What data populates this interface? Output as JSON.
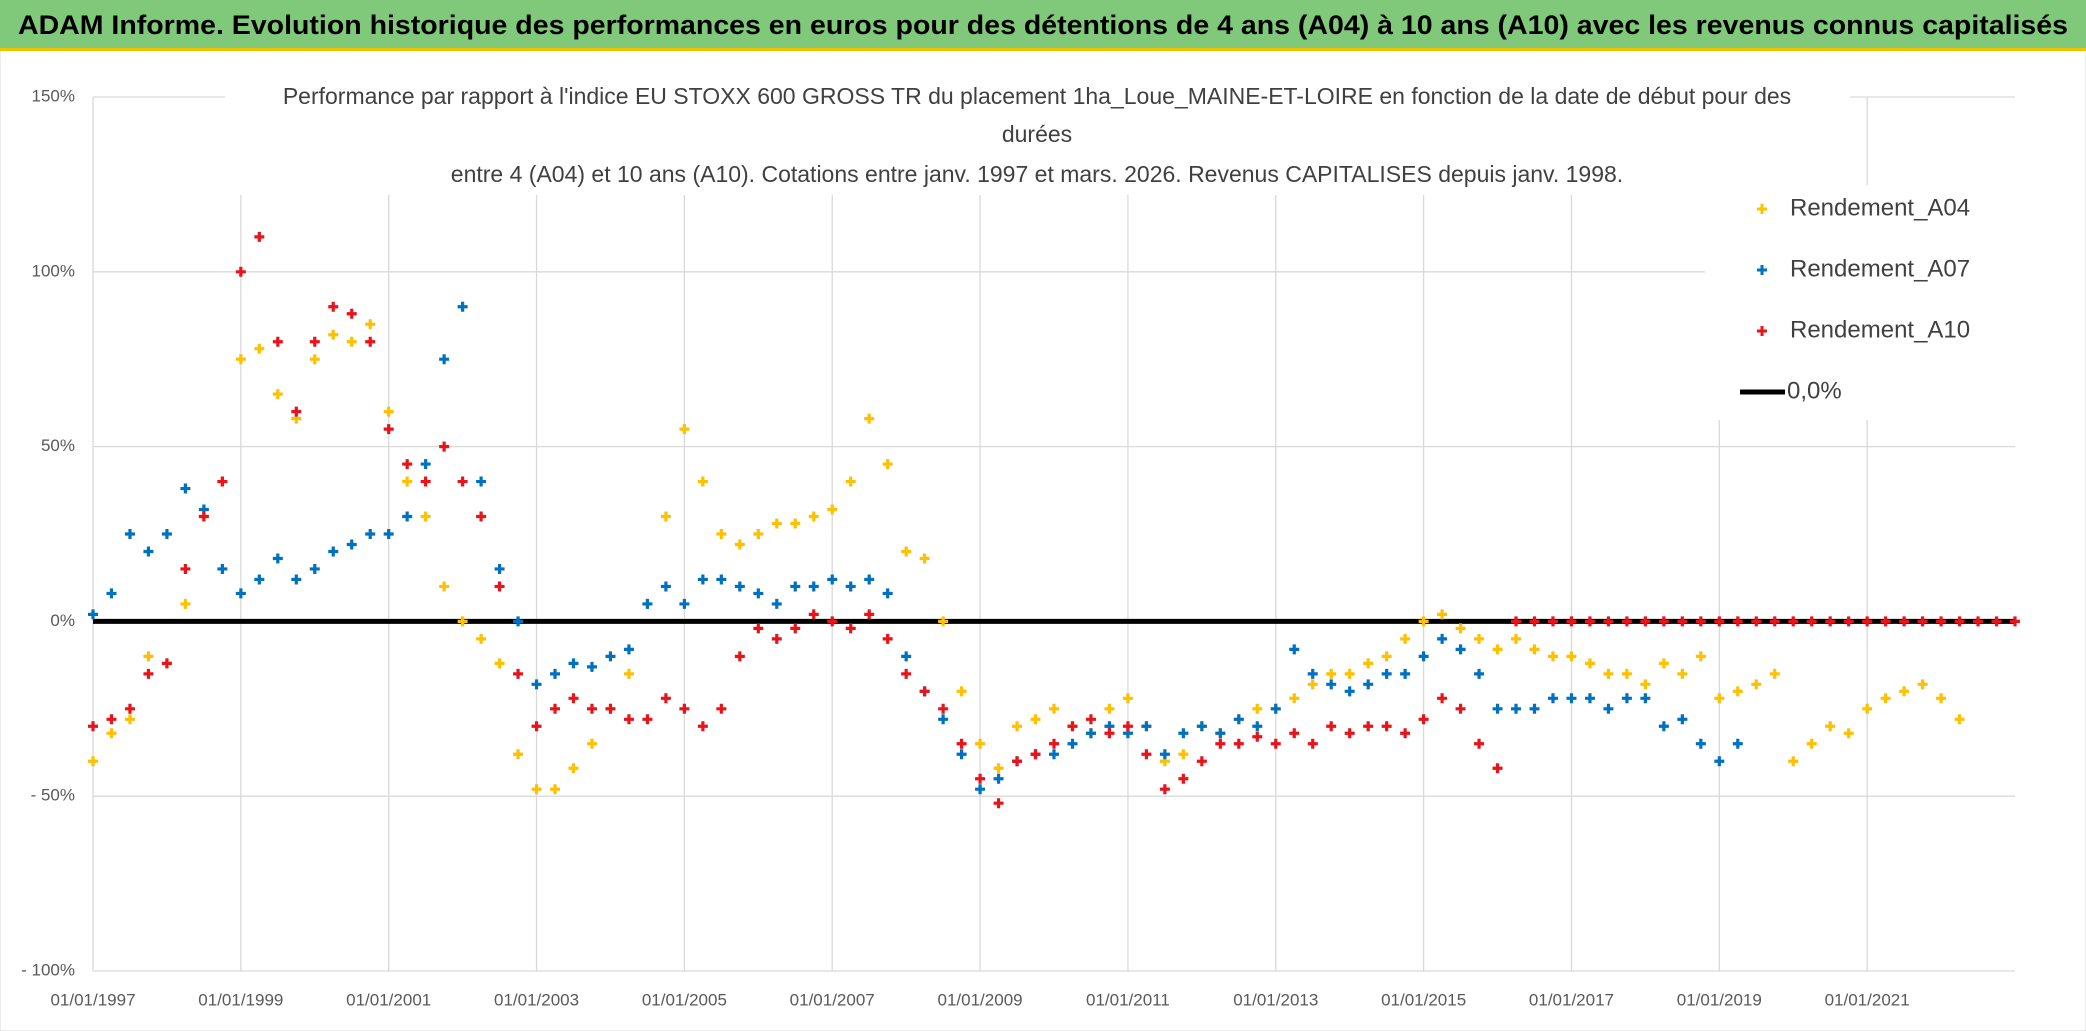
{
  "chart_data": {
    "type": "scatter",
    "title": "ADAM Informe. Evolution historique des performances en euros pour des détentions de 4 ans (A04) à 10 ans (A10) avec les revenus connus capitalisés",
    "subtitle": [
      "Performance par rapport à l'indice EU STOXX 600 GROSS TR  du placement 1ha_Loue_MAINE-ET-LOIRE en fonction de la date de début pour des",
      "durées",
      "entre 4 (A04) et 10 ans (A10). Cotations entre janv. 1997 et mars. 2026. Revenus CAPITALISES depuis janv. 1998."
    ],
    "xlim": [
      1997,
      2023
    ],
    "xticks": [
      {
        "value": 1997,
        "label": "01/01/1997"
      },
      {
        "value": 1999,
        "label": "01/01/1999"
      },
      {
        "value": 2001,
        "label": "01/01/2001"
      },
      {
        "value": 2003,
        "label": "01/01/2003"
      },
      {
        "value": 2005,
        "label": "01/01/2005"
      },
      {
        "value": 2007,
        "label": "01/01/2007"
      },
      {
        "value": 2009,
        "label": "01/01/2009"
      },
      {
        "value": 2011,
        "label": "01/01/2011"
      },
      {
        "value": 2013,
        "label": "01/01/2013"
      },
      {
        "value": 2015,
        "label": "01/01/2015"
      },
      {
        "value": 2017,
        "label": "01/01/2017"
      },
      {
        "value": 2019,
        "label": "01/01/2019"
      },
      {
        "value": 2021,
        "label": "01/01/2021"
      }
    ],
    "ylim": [
      -100,
      150
    ],
    "yticks": [
      {
        "value": 150,
        "label": "150%"
      },
      {
        "value": 100,
        "label": "100%"
      },
      {
        "value": 50,
        "label": "50%"
      },
      {
        "value": 0,
        "label": "0%"
      },
      {
        "value": -50,
        "label": "- 50%"
      },
      {
        "value": -100,
        "label": "- 100%"
      }
    ],
    "grid": true,
    "series": [
      {
        "name": "Rendement_A04",
        "color": "#ffc000",
        "style": "marker",
        "x": [
          1997,
          1997.25,
          1997.5,
          1997.75,
          1998,
          1998.25,
          1998.5,
          1998.75,
          1999,
          1999.25,
          1999.5,
          1999.75,
          2000,
          2000.25,
          2000.5,
          2000.75,
          2001,
          2001.25,
          2001.5,
          2001.75,
          2002,
          2002.25,
          2002.5,
          2002.75,
          2003,
          2003.25,
          2003.5,
          2003.75,
          2004,
          2004.25,
          2004.5,
          2004.75,
          2005,
          2005.25,
          2005.5,
          2005.75,
          2006,
          2006.25,
          2006.5,
          2006.75,
          2007,
          2007.25,
          2007.5,
          2007.75,
          2008,
          2008.25,
          2008.5,
          2008.75,
          2009,
          2009.25,
          2009.5,
          2009.75,
          2010,
          2010.25,
          2010.5,
          2010.75,
          2011,
          2011.25,
          2011.5,
          2011.75,
          2012,
          2012.25,
          2012.5,
          2012.75,
          2013,
          2013.25,
          2013.5,
          2013.75,
          2014,
          2014.25,
          2014.5,
          2014.75,
          2015,
          2015.25,
          2015.5,
          2015.75,
          2016,
          2016.25,
          2016.5,
          2016.75,
          2017,
          2017.25,
          2017.5,
          2017.75,
          2018,
          2018.25,
          2018.5,
          2018.75,
          2019,
          2019.25,
          2019.5,
          2019.75,
          2020,
          2020.25,
          2020.5,
          2020.75,
          2021,
          2021.25,
          2021.5,
          2021.75,
          2022,
          2022.25
        ],
        "values": [
          -40,
          -32,
          -28,
          -10,
          -12,
          5,
          30,
          40,
          75,
          78,
          65,
          58,
          75,
          82,
          80,
          85,
          60,
          40,
          30,
          10,
          0,
          -5,
          -12,
          -38,
          -48,
          -48,
          -42,
          -35,
          -25,
          -15,
          5,
          30,
          55,
          40,
          25,
          22,
          25,
          28,
          28,
          30,
          32,
          40,
          58,
          45,
          20,
          18,
          0,
          -20,
          -35,
          -42,
          -30,
          -28,
          -25,
          -30,
          -32,
          -25,
          -22,
          -30,
          -40,
          -38,
          -30,
          -32,
          -28,
          -25,
          -25,
          -22,
          -18,
          -15,
          -15,
          -12,
          -10,
          -5,
          0,
          2,
          -2,
          -5,
          -8,
          -5,
          -8,
          -10,
          -10,
          -12,
          -15,
          -15,
          -18,
          -12,
          -15,
          -10,
          -22,
          -20,
          -18,
          -15,
          -40,
          -35,
          -30,
          -32,
          -25,
          -22,
          -20,
          -18,
          -22,
          -28
        ]
      },
      {
        "name": "Rendement_A07",
        "color": "#0070c0",
        "style": "marker",
        "x": [
          1997,
          1997.25,
          1997.5,
          1997.75,
          1998,
          1998.25,
          1998.5,
          1998.75,
          1999,
          1999.25,
          1999.5,
          1999.75,
          2000,
          2000.25,
          2000.5,
          2000.75,
          2001,
          2001.25,
          2001.5,
          2001.75,
          2002,
          2002.25,
          2002.5,
          2002.75,
          2003,
          2003.25,
          2003.5,
          2003.75,
          2004,
          2004.25,
          2004.5,
          2004.75,
          2005,
          2005.25,
          2005.5,
          2005.75,
          2006,
          2006.25,
          2006.5,
          2006.75,
          2007,
          2007.25,
          2007.5,
          2007.75,
          2008,
          2008.25,
          2008.5,
          2008.75,
          2009,
          2009.25,
          2009.5,
          2009.75,
          2010,
          2010.25,
          2010.5,
          2010.75,
          2011,
          2011.25,
          2011.5,
          2011.75,
          2012,
          2012.25,
          2012.5,
          2012.75,
          2013,
          2013.25,
          2013.5,
          2013.75,
          2014,
          2014.25,
          2014.5,
          2014.75,
          2015,
          2015.25,
          2015.5,
          2015.75,
          2016,
          2016.25,
          2016.5,
          2016.75,
          2017,
          2017.25,
          2017.5,
          2017.75,
          2018,
          2018.25,
          2018.5,
          2018.75,
          2019,
          2019.25
        ],
        "values": [
          2,
          8,
          25,
          20,
          25,
          38,
          32,
          15,
          8,
          12,
          18,
          12,
          15,
          20,
          22,
          25,
          25,
          30,
          45,
          75,
          90,
          40,
          15,
          0,
          -18,
          -15,
          -12,
          -13,
          -10,
          -8,
          5,
          10,
          5,
          12,
          12,
          10,
          8,
          5,
          10,
          10,
          12,
          10,
          12,
          8,
          -10,
          -20,
          -28,
          -38,
          -48,
          -45,
          -40,
          -38,
          -38,
          -35,
          -32,
          -30,
          -32,
          -30,
          -38,
          -32,
          -30,
          -32,
          -28,
          -30,
          -25,
          -8,
          -15,
          -18,
          -20,
          -18,
          -15,
          -15,
          -10,
          -5,
          -8,
          -15,
          -25,
          -25,
          -25,
          -22,
          -22,
          -22,
          -25,
          -22,
          -22,
          -30,
          -28,
          -35,
          -40,
          -35
        ]
      },
      {
        "name": "Rendement_A10",
        "color": "#e8141c",
        "style": "marker",
        "x": [
          1997,
          1997.25,
          1997.5,
          1997.75,
          1998,
          1998.25,
          1998.5,
          1998.75,
          1999,
          1999.25,
          1999.5,
          1999.75,
          2000,
          2000.25,
          2000.5,
          2000.75,
          2001,
          2001.25,
          2001.5,
          2001.75,
          2002,
          2002.25,
          2002.5,
          2002.75,
          2003,
          2003.25,
          2003.5,
          2003.75,
          2004,
          2004.25,
          2004.5,
          2004.75,
          2005,
          2005.25,
          2005.5,
          2005.75,
          2006,
          2006.25,
          2006.5,
          2006.75,
          2007,
          2007.25,
          2007.5,
          2007.75,
          2008,
          2008.25,
          2008.5,
          2008.75,
          2009,
          2009.25,
          2009.5,
          2009.75,
          2010,
          2010.25,
          2010.5,
          2010.75,
          2011,
          2011.25,
          2011.5,
          2011.75,
          2012,
          2012.25,
          2012.5,
          2012.75,
          2013,
          2013.25,
          2013.5,
          2013.75,
          2014,
          2014.25,
          2014.5,
          2014.75,
          2015,
          2015.25,
          2015.5,
          2015.75,
          2016,
          2016.25,
          2016.5,
          2016.75,
          2017,
          2017.25,
          2017.5,
          2017.75,
          2018,
          2018.25,
          2018.5,
          2018.75,
          2019,
          2019.25,
          2019.5,
          2019.75,
          2020,
          2020.25,
          2020.5,
          2020.75,
          2021,
          2021.25,
          2021.5,
          2021.75,
          2022,
          2022.25,
          2022.5,
          2022.75,
          2023
        ],
        "values": [
          -30,
          -28,
          -25,
          -15,
          -12,
          15,
          30,
          40,
          100,
          110,
          80,
          60,
          80,
          90,
          88,
          80,
          55,
          45,
          40,
          50,
          40,
          30,
          10,
          -15,
          -30,
          -25,
          -22,
          -25,
          -25,
          -28,
          -28,
          -22,
          -25,
          -30,
          -25,
          -10,
          -2,
          -5,
          -2,
          2,
          0,
          -2,
          2,
          -5,
          -15,
          -20,
          -25,
          -35,
          -45,
          -52,
          -40,
          -38,
          -35,
          -30,
          -28,
          -32,
          -30,
          -38,
          -48,
          -45,
          -40,
          -35,
          -35,
          -33,
          -35,
          -32,
          -35,
          -30,
          -32,
          -30,
          -30,
          -32,
          -28,
          -22,
          -25,
          -35,
          -42,
          0,
          0,
          0,
          0,
          0,
          0,
          0,
          0,
          0,
          0,
          0,
          0,
          0,
          0,
          0,
          0,
          0,
          0,
          0,
          0,
          0,
          0,
          0,
          0,
          0,
          0,
          0,
          0
        ]
      },
      {
        "name": "0,0%",
        "color": "#000000",
        "style": "line",
        "x": [
          1997,
          2023
        ],
        "values": [
          0,
          0
        ]
      }
    ]
  }
}
